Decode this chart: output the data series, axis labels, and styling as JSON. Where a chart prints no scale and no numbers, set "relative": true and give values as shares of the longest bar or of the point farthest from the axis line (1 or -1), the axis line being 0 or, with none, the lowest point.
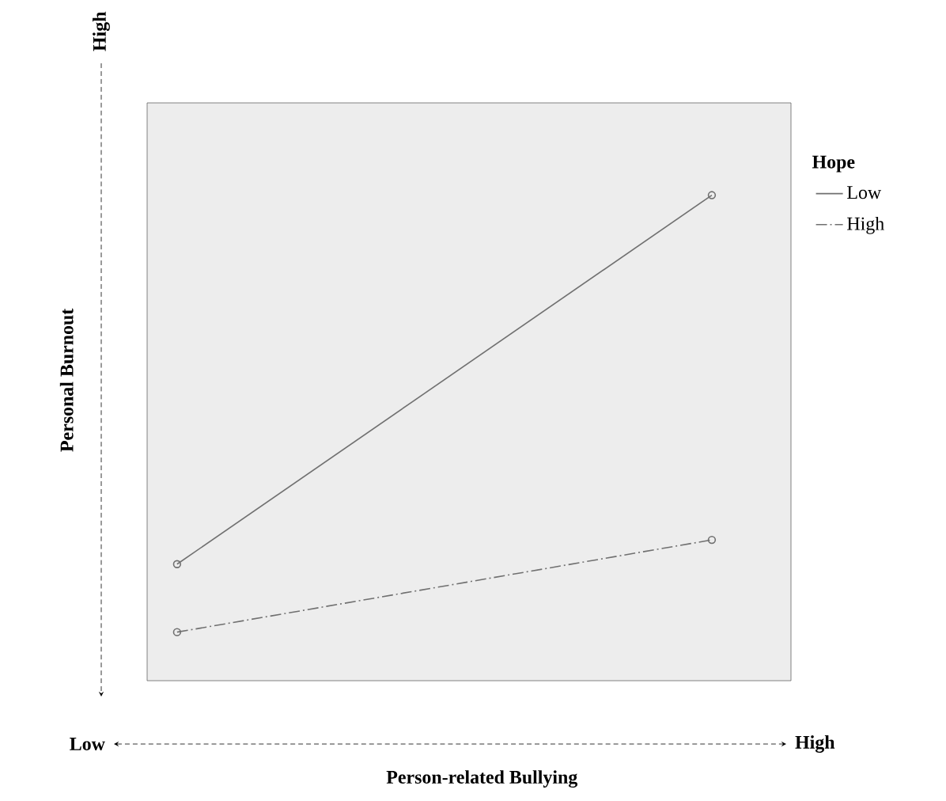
{
  "chart_data": {
    "type": "line",
    "relative": true,
    "categories": [
      null,
      null
    ],
    "xlabel": "Person-related Bullying",
    "ylabel": "Personal Burnout",
    "legend_title": "Hope",
    "legend": "top right",
    "marker": "circle",
    "annotations": [
      "Low",
      "High",
      "High"
    ],
    "series": [
      {
        "name": "Low",
        "color": "#707070",
        "line_style": "solid",
        "values": [
          0.24,
          1
        ]
      },
      {
        "name": "High",
        "color": "#707070",
        "line_style": "dashdot",
        "values": [
          0.1,
          0.29
        ]
      }
    ]
  }
}
